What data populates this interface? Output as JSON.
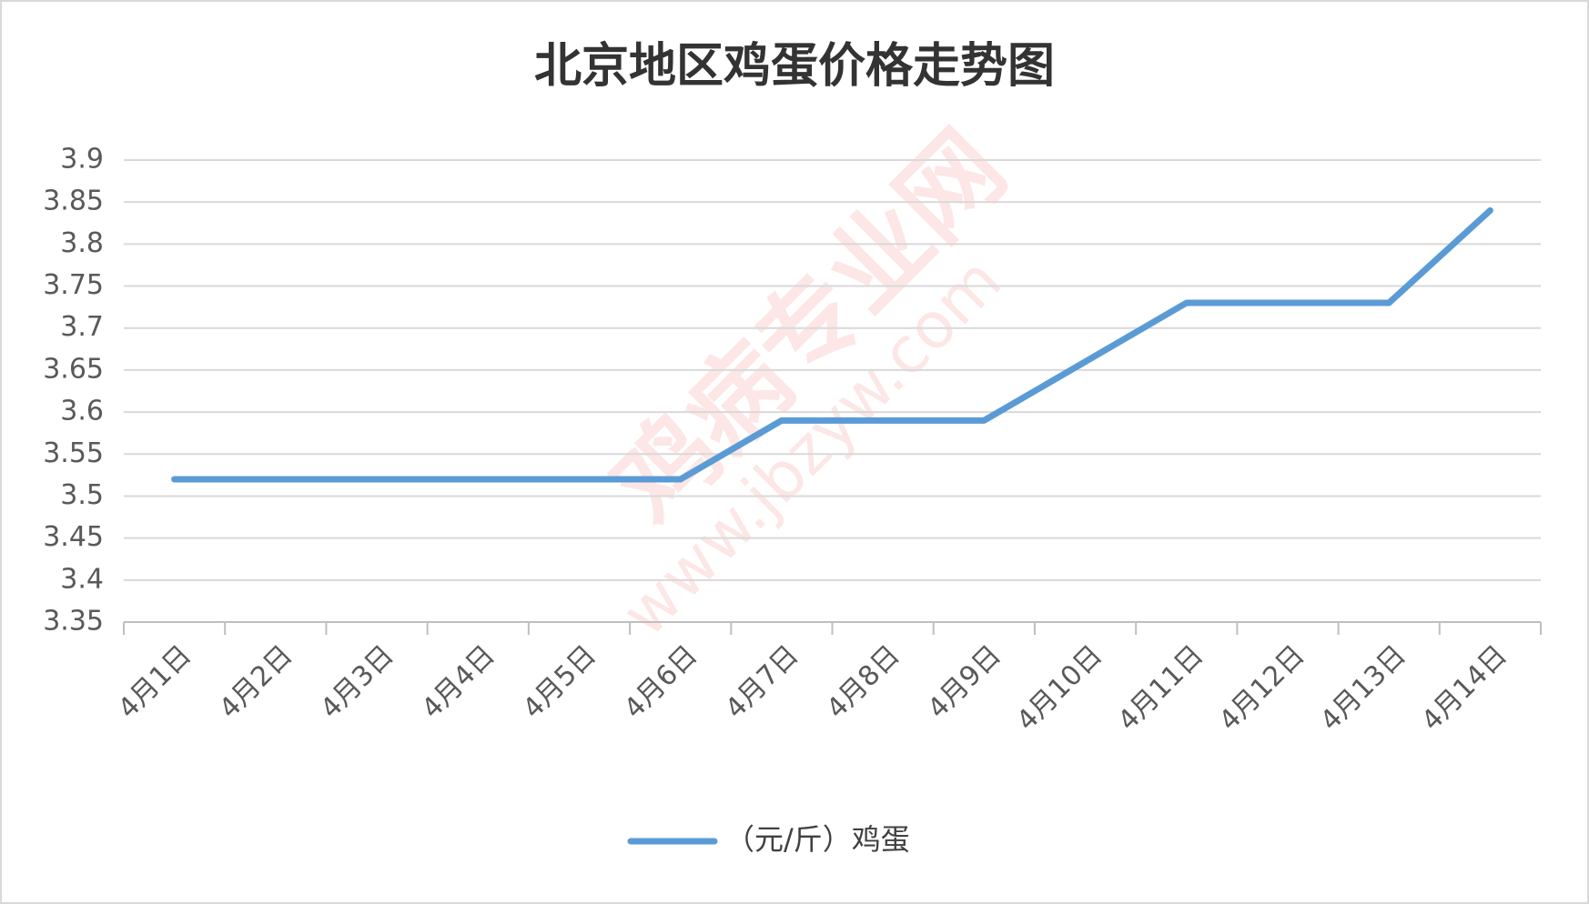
{
  "chart_data": {
    "type": "line",
    "title": "北京地区鸡蛋价格走势图",
    "categories": [
      "4月1日",
      "4月2日",
      "4月3日",
      "4月4日",
      "4月5日",
      "4月6日",
      "4月7日",
      "4月8日",
      "4月9日",
      "4月10日",
      "4月11日",
      "4月12日",
      "4月13日",
      "4月14日"
    ],
    "series": [
      {
        "name": "（元/斤）鸡蛋",
        "color": "#5b9bd5",
        "values": [
          3.52,
          3.52,
          3.52,
          3.52,
          3.52,
          3.52,
          3.59,
          3.59,
          3.59,
          3.66,
          3.73,
          3.73,
          3.73,
          3.84
        ]
      }
    ],
    "ylim": [
      3.35,
      3.9
    ],
    "yticks": [
      3.35,
      3.4,
      3.45,
      3.5,
      3.55,
      3.6,
      3.65,
      3.7,
      3.75,
      3.8,
      3.85,
      3.9
    ],
    "grid": true,
    "legend": "bottom",
    "watermark": [
      "鸡病专业网",
      "www.jbzyw.com"
    ]
  }
}
